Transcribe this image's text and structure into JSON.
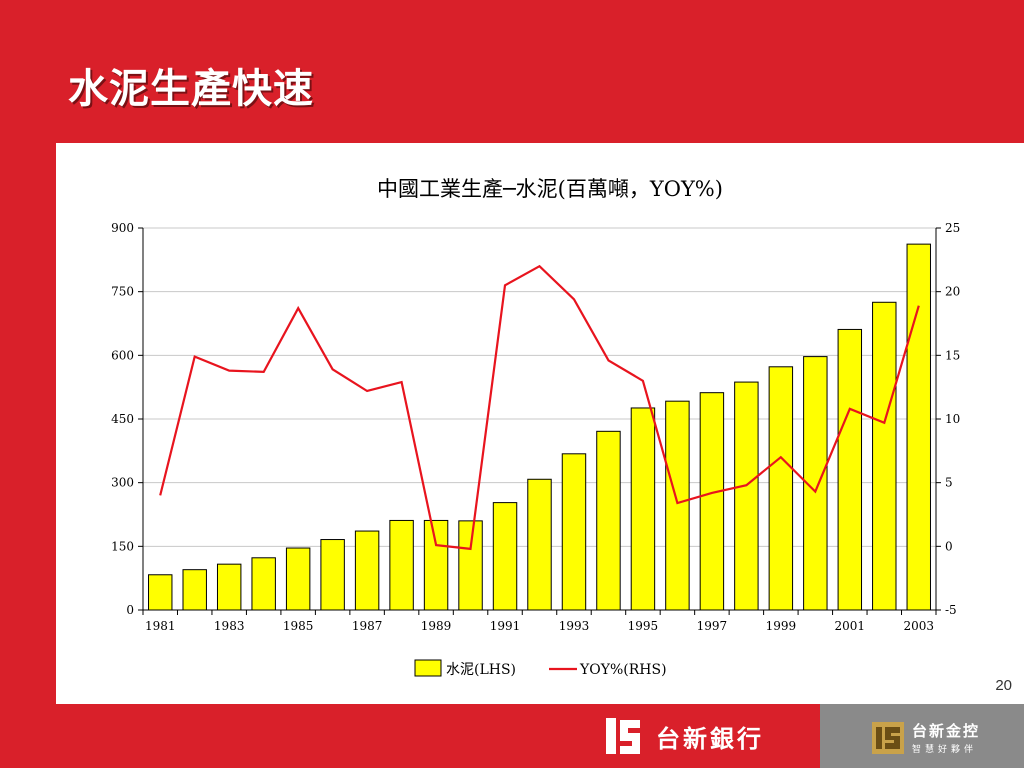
{
  "slide": {
    "title": "水泥生產快速",
    "page_number": "20"
  },
  "brand": {
    "bank_name": "台新銀行",
    "holding_name": "台新金控",
    "holding_tagline": "智慧好夥伴"
  },
  "colors": {
    "background_red": "#d9202a",
    "bar_fill": "#ffff00",
    "line_color": "#e8141e",
    "footer_gray": "#8a8a8a"
  },
  "chart_data": {
    "type": "bar",
    "title": "中國工業生產─水泥(百萬噸，YOY%)",
    "categories": [
      "1981",
      "1982",
      "1983",
      "1984",
      "1985",
      "1986",
      "1987",
      "1988",
      "1989",
      "1990",
      "1991",
      "1992",
      "1993",
      "1994",
      "1995",
      "1996",
      "1997",
      "1998",
      "1999",
      "2000",
      "2001",
      "2002",
      "2003"
    ],
    "x_tick_labels": [
      "1981",
      "1983",
      "1985",
      "1987",
      "1989",
      "1991",
      "1993",
      "1995",
      "1997",
      "1999",
      "2001",
      "2003"
    ],
    "series": [
      {
        "name": "水泥(LHS)",
        "type": "bar",
        "axis": "left",
        "values": [
          83,
          95,
          108,
          123,
          146,
          166,
          186,
          211,
          211,
          210,
          253,
          308,
          368,
          421,
          476,
          492,
          512,
          537,
          573,
          597,
          661,
          725,
          862
        ]
      },
      {
        "name": "YOY%(RHS)",
        "type": "line",
        "axis": "right",
        "values": [
          4.0,
          14.9,
          13.8,
          13.7,
          18.7,
          13.9,
          12.2,
          12.9,
          0.1,
          -0.2,
          20.5,
          22.0,
          19.4,
          14.6,
          13.0,
          3.4,
          4.2,
          4.8,
          7.0,
          4.3,
          10.8,
          9.7,
          18.9
        ]
      }
    ],
    "y_left": {
      "min": 0,
      "max": 900,
      "ticks": [
        "0",
        "150",
        "300",
        "450",
        "600",
        "750",
        "900"
      ]
    },
    "y_right": {
      "min": -5,
      "max": 25,
      "ticks": [
        "-5",
        "0",
        "5",
        "10",
        "15",
        "20",
        "25"
      ]
    },
    "grid": true,
    "legend_position": "bottom"
  }
}
